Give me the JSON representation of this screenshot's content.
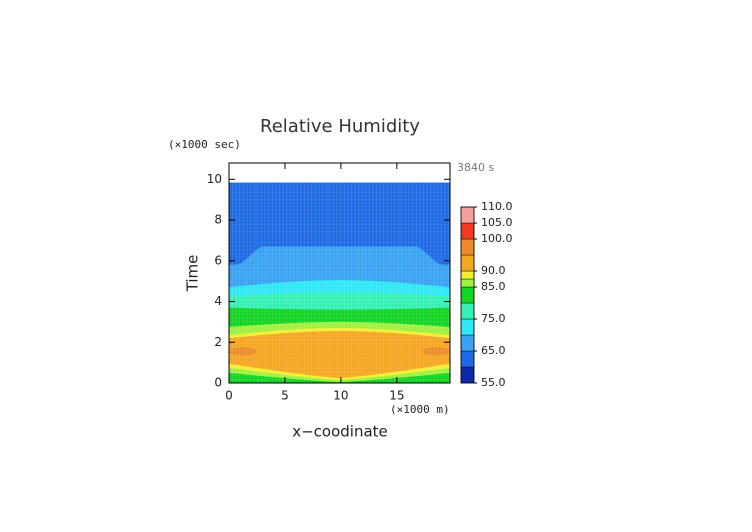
{
  "chart_data": {
    "type": "contour",
    "title": "Relative Humidity",
    "x_label": "x−coodinate",
    "x_unit": "(×1000 m)",
    "y_label": "Time",
    "y_unit": "(×1000 sec)",
    "annotation": "3840 s",
    "xlim": [
      0,
      19.75
    ],
    "xticks": [
      0,
      5,
      10,
      15
    ],
    "ylim": [
      0,
      10.8
    ],
    "yticks": [
      0,
      2,
      4,
      6,
      8,
      10
    ],
    "levels": [
      55,
      60,
      65,
      70,
      75,
      80,
      85,
      87.5,
      90,
      95,
      100,
      105,
      110
    ],
    "colors": [
      "#0c2aa8",
      "#1e6ae4",
      "#3aa2f2",
      "#2ee8f6",
      "#34f0b4",
      "#14d424",
      "#a0f040",
      "#f2f032",
      "#f5a623",
      "#ee8a2a",
      "#f03a22",
      "#f4a0a0"
    ],
    "colorbar_ticks": [
      {
        "value": 55,
        "label": "55.0"
      },
      {
        "value": 65,
        "label": "65.0"
      },
      {
        "value": 75,
        "label": "75.0"
      },
      {
        "value": 85,
        "label": "85.0"
      },
      {
        "value": 90,
        "label": "90.0"
      },
      {
        "value": 100,
        "label": "100.0"
      },
      {
        "value": 105,
        "label": "105.0"
      },
      {
        "value": 110,
        "label": "110.0"
      }
    ]
  }
}
